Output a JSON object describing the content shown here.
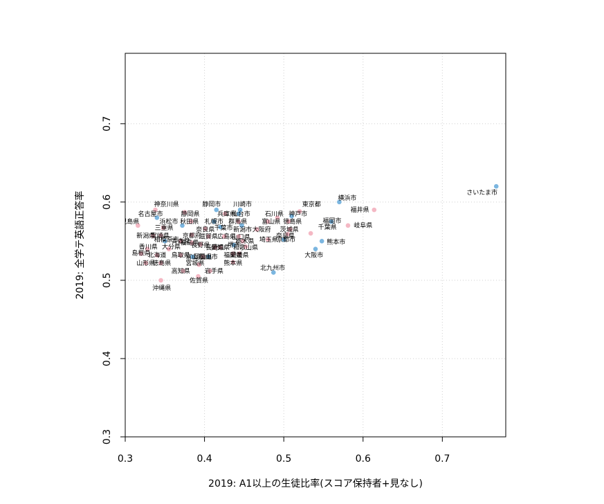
{
  "chart_data": {
    "type": "scatter",
    "xlabel": "2019: A1以上の生徒比率(スコア保持者+見なし)",
    "ylabel": "2019: 全学テ英語正答率",
    "xlim": [
      0.3,
      0.78
    ],
    "ylim": [
      0.3,
      0.79
    ],
    "xticks": [
      0.3,
      0.4,
      0.5,
      0.6,
      0.7
    ],
    "yticks": [
      0.3,
      0.4,
      0.5,
      0.6,
      0.7
    ],
    "xtick_labels": [
      "0.3",
      "0.4",
      "0.5",
      "0.6",
      "0.7"
    ],
    "ytick_labels": [
      "0.3",
      "0.4",
      "0.5",
      "0.6",
      "0.7"
    ],
    "grid": true,
    "colors": {
      "prefecture": "#f4b8c4",
      "city": "#7bb6e0"
    },
    "points": [
      {
        "label": "さいたま市",
        "x": 0.768,
        "y": 0.62,
        "group": "city",
        "lx": 0.75,
        "ly": 0.612
      },
      {
        "label": "横浜市",
        "x": 0.57,
        "y": 0.6,
        "group": "city",
        "lx": 0.58,
        "ly": 0.605
      },
      {
        "label": "福井県",
        "x": 0.614,
        "y": 0.59,
        "group": "prefecture",
        "lx": 0.596,
        "ly": 0.59
      },
      {
        "label": "東京都",
        "x": 0.52,
        "y": 0.588,
        "group": "prefecture",
        "lx": 0.535,
        "ly": 0.597
      },
      {
        "label": "岐阜県",
        "x": 0.581,
        "y": 0.57,
        "group": "prefecture",
        "lx": 0.6,
        "ly": 0.57
      },
      {
        "label": "福岡市",
        "x": 0.56,
        "y": 0.575,
        "group": "city",
        "lx": 0.561,
        "ly": 0.576
      },
      {
        "label": "千葉県",
        "x": 0.534,
        "y": 0.56,
        "group": "prefecture",
        "lx": 0.555,
        "ly": 0.568
      },
      {
        "label": "熊本市",
        "x": 0.548,
        "y": 0.55,
        "group": "city",
        "lx": 0.566,
        "ly": 0.549
      },
      {
        "label": "大阪市",
        "x": 0.54,
        "y": 0.54,
        "group": "city",
        "lx": 0.538,
        "ly": 0.532
      },
      {
        "label": "北九州市",
        "x": 0.487,
        "y": 0.51,
        "group": "city",
        "lx": 0.486,
        "ly": 0.516
      },
      {
        "label": "神戸市",
        "x": 0.51,
        "y": 0.582,
        "group": "city",
        "lx": 0.518,
        "ly": 0.585
      },
      {
        "label": "石川県",
        "x": 0.492,
        "y": 0.58,
        "group": "prefecture",
        "lx": 0.488,
        "ly": 0.585
      },
      {
        "label": "富山県",
        "x": 0.48,
        "y": 0.575,
        "group": "prefecture",
        "lx": 0.484,
        "ly": 0.575
      },
      {
        "label": "徳島県",
        "x": 0.506,
        "y": 0.575,
        "group": "prefecture",
        "lx": 0.511,
        "ly": 0.575
      },
      {
        "label": "茨城県",
        "x": 0.508,
        "y": 0.565,
        "group": "prefecture",
        "lx": 0.507,
        "ly": 0.565
      },
      {
        "label": "奈良県",
        "x": 0.505,
        "y": 0.559,
        "group": "prefecture",
        "lx": 0.502,
        "ly": 0.557
      },
      {
        "label": "埼玉県",
        "x": 0.48,
        "y": 0.552,
        "group": "prefecture",
        "lx": 0.481,
        "ly": 0.552
      },
      {
        "label": "京都市",
        "x": 0.5,
        "y": 0.552,
        "group": "city",
        "lx": 0.503,
        "ly": 0.552
      },
      {
        "label": "川崎市",
        "x": 0.445,
        "y": 0.59,
        "group": "city",
        "lx": 0.448,
        "ly": 0.597
      },
      {
        "label": "静岡市",
        "x": 0.415,
        "y": 0.59,
        "group": "city",
        "lx": 0.409,
        "ly": 0.597
      },
      {
        "label": "兵庫県",
        "x": 0.426,
        "y": 0.585,
        "group": "prefecture",
        "lx": 0.428,
        "ly": 0.585
      },
      {
        "label": "仙台市",
        "x": 0.443,
        "y": 0.585,
        "group": "city",
        "lx": 0.446,
        "ly": 0.585
      },
      {
        "label": "群馬県",
        "x": 0.443,
        "y": 0.575,
        "group": "prefecture",
        "lx": 0.442,
        "ly": 0.575
      },
      {
        "label": "新潟市",
        "x": 0.447,
        "y": 0.57,
        "group": "city",
        "lx": 0.448,
        "ly": 0.565
      },
      {
        "label": "大阪府",
        "x": 0.466,
        "y": 0.565,
        "group": "prefecture",
        "lx": 0.472,
        "ly": 0.565
      },
      {
        "label": "千葉市",
        "x": 0.42,
        "y": 0.568,
        "group": "city",
        "lx": 0.424,
        "ly": 0.567
      },
      {
        "label": "札幌市",
        "x": 0.412,
        "y": 0.575,
        "group": "city",
        "lx": 0.412,
        "ly": 0.575
      },
      {
        "label": "秋田県",
        "x": 0.383,
        "y": 0.575,
        "group": "prefecture",
        "lx": 0.381,
        "ly": 0.575
      },
      {
        "label": "浜松市",
        "x": 0.372,
        "y": 0.57,
        "group": "city",
        "lx": 0.355,
        "ly": 0.575
      },
      {
        "label": "奈良県",
        "x": 0.401,
        "y": 0.566,
        "group": "prefecture",
        "lx": 0.401,
        "ly": 0.565
      },
      {
        "label": "京都府",
        "x": 0.384,
        "y": 0.558,
        "group": "prefecture",
        "lx": 0.384,
        "ly": 0.557
      },
      {
        "label": "滋賀県",
        "x": 0.405,
        "y": 0.556,
        "group": "prefecture",
        "lx": 0.405,
        "ly": 0.556
      },
      {
        "label": "広島県",
        "x": 0.425,
        "y": 0.556,
        "group": "prefecture",
        "lx": 0.428,
        "ly": 0.556
      },
      {
        "label": "山口県",
        "x": 0.443,
        "y": 0.556,
        "group": "prefecture",
        "lx": 0.446,
        "ly": 0.555
      },
      {
        "label": "栃木県",
        "x": 0.448,
        "y": 0.55,
        "group": "prefecture",
        "lx": 0.451,
        "ly": 0.55
      },
      {
        "label": "和歌山県",
        "x": 0.452,
        "y": 0.543,
        "group": "prefecture",
        "lx": 0.452,
        "ly": 0.542
      },
      {
        "label": "堺市",
        "x": 0.437,
        "y": 0.545,
        "group": "city",
        "lx": 0.437,
        "ly": 0.545
      },
      {
        "label": "長崎県",
        "x": 0.413,
        "y": 0.542,
        "group": "prefecture",
        "lx": 0.413,
        "ly": 0.542
      },
      {
        "label": "愛知県",
        "x": 0.42,
        "y": 0.542,
        "group": "prefecture",
        "lx": 0.42,
        "ly": 0.542
      },
      {
        "label": "福島県",
        "x": 0.384,
        "y": 0.548,
        "group": "prefecture",
        "lx": 0.381,
        "ly": 0.548
      },
      {
        "label": "長野県",
        "x": 0.395,
        "y": 0.546,
        "group": "prefecture",
        "lx": 0.395,
        "ly": 0.545
      },
      {
        "label": "福岡県",
        "x": 0.436,
        "y": 0.534,
        "group": "prefecture",
        "lx": 0.436,
        "ly": 0.532
      },
      {
        "label": "愛媛県",
        "x": 0.444,
        "y": 0.534,
        "group": "prefecture",
        "lx": 0.444,
        "ly": 0.532
      },
      {
        "label": "熊本県",
        "x": 0.436,
        "y": 0.523,
        "group": "prefecture",
        "lx": 0.436,
        "ly": 0.522
      },
      {
        "label": "岡山県",
        "x": 0.398,
        "y": 0.53,
        "group": "prefecture",
        "lx": 0.398,
        "ly": 0.53
      },
      {
        "label": "岡山市",
        "x": 0.405,
        "y": 0.53,
        "group": "city",
        "lx": 0.405,
        "ly": 0.53
      },
      {
        "label": "神奈川県",
        "x": 0.338,
        "y": 0.59,
        "group": "prefecture",
        "lx": 0.352,
        "ly": 0.597
      },
      {
        "label": "静岡県",
        "x": 0.375,
        "y": 0.587,
        "group": "prefecture",
        "lx": 0.382,
        "ly": 0.585
      },
      {
        "label": "名古屋市",
        "x": 0.34,
        "y": 0.58,
        "group": "city",
        "lx": 0.332,
        "ly": 0.585
      },
      {
        "label": "三重県",
        "x": 0.348,
        "y": 0.567,
        "group": "prefecture",
        "lx": 0.349,
        "ly": 0.567
      },
      {
        "label": "鹿児島県",
        "x": 0.316,
        "y": 0.57,
        "group": "prefecture",
        "lx": 0.302,
        "ly": 0.575
      },
      {
        "label": "新潟県",
        "x": 0.335,
        "y": 0.557,
        "group": "prefecture",
        "lx": 0.326,
        "ly": 0.557
      },
      {
        "label": "宮崎県",
        "x": 0.345,
        "y": 0.557,
        "group": "prefecture",
        "lx": 0.344,
        "ly": 0.557
      },
      {
        "label": "相模原市",
        "x": 0.35,
        "y": 0.55,
        "group": "city",
        "lx": 0.352,
        "ly": 0.552
      },
      {
        "label": "青森県",
        "x": 0.37,
        "y": 0.55,
        "group": "prefecture",
        "lx": 0.37,
        "ly": 0.55
      },
      {
        "label": "香川県",
        "x": 0.328,
        "y": 0.54,
        "group": "prefecture",
        "lx": 0.329,
        "ly": 0.543
      },
      {
        "label": "大分県",
        "x": 0.355,
        "y": 0.54,
        "group": "prefecture",
        "lx": 0.358,
        "ly": 0.543
      },
      {
        "label": "島根県",
        "x": 0.32,
        "y": 0.534,
        "group": "prefecture",
        "lx": 0.32,
        "ly": 0.535
      },
      {
        "label": "北海道",
        "x": 0.34,
        "y": 0.532,
        "group": "prefecture",
        "lx": 0.34,
        "ly": 0.532
      },
      {
        "label": "鳥取県",
        "x": 0.37,
        "y": 0.532,
        "group": "prefecture",
        "lx": 0.37,
        "ly": 0.532
      },
      {
        "label": "富山市",
        "x": 0.385,
        "y": 0.53,
        "group": "city",
        "lx": 0.388,
        "ly": 0.53
      },
      {
        "label": "山形県",
        "x": 0.326,
        "y": 0.522,
        "group": "prefecture",
        "lx": 0.326,
        "ly": 0.522
      },
      {
        "label": "徳島県",
        "x": 0.345,
        "y": 0.522,
        "group": "prefecture",
        "lx": 0.346,
        "ly": 0.522
      },
      {
        "label": "宮城県",
        "x": 0.393,
        "y": 0.52,
        "group": "prefecture",
        "lx": 0.388,
        "ly": 0.522
      },
      {
        "label": "高知県",
        "x": 0.373,
        "y": 0.512,
        "group": "prefecture",
        "lx": 0.37,
        "ly": 0.512
      },
      {
        "label": "岩手県",
        "x": 0.407,
        "y": 0.512,
        "group": "prefecture",
        "lx": 0.412,
        "ly": 0.512
      },
      {
        "label": "佐賀県",
        "x": 0.392,
        "y": 0.505,
        "group": "prefecture",
        "lx": 0.393,
        "ly": 0.5
      },
      {
        "label": "沖縄県",
        "x": 0.345,
        "y": 0.5,
        "group": "prefecture",
        "lx": 0.346,
        "ly": 0.49
      }
    ]
  }
}
